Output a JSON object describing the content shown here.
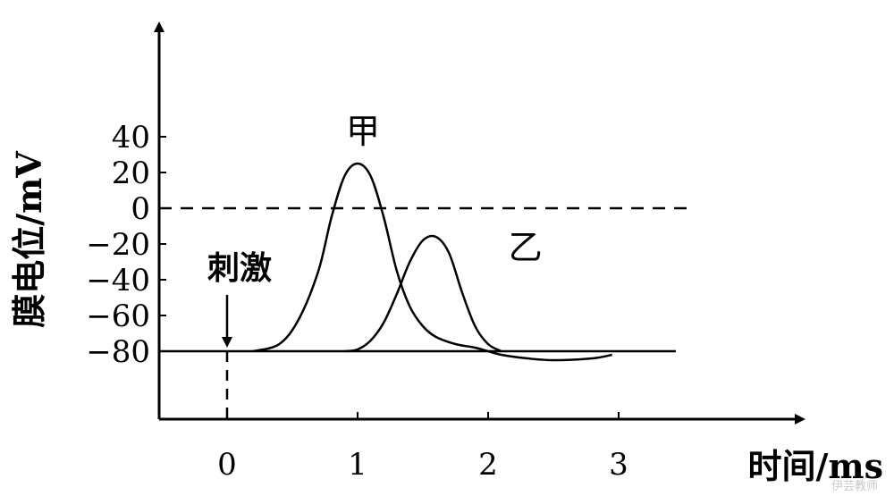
{
  "chart_data": {
    "type": "line",
    "xlabel": "时间/ms",
    "ylabel": "膜电位/mV",
    "xlim": [
      -0.55,
      3.2
    ],
    "ylim": [
      -118,
      78
    ],
    "x_ticks": [
      "0",
      "1",
      "2",
      "3"
    ],
    "y_ticks": [
      "40",
      "20",
      "0",
      "−20",
      "−40",
      "−60",
      "−80"
    ],
    "y_tick_values": [
      40,
      20,
      0,
      -20,
      -40,
      -60,
      -80
    ],
    "reference_line": {
      "y": 0,
      "style": "dashed"
    },
    "stimulus": {
      "label": "刺激",
      "x": 0,
      "style": "arrow with dashed drop line"
    },
    "baseline": {
      "y": -80,
      "x_range": [
        -0.5,
        3.25
      ]
    },
    "series": [
      {
        "name": "甲",
        "x": [
          0.2,
          0.4,
          0.55,
          0.7,
          0.8,
          0.9,
          1.0,
          1.1,
          1.2,
          1.3,
          1.4,
          1.5,
          1.6,
          1.75,
          1.9,
          2.0,
          2.1,
          2.3,
          2.5,
          2.8,
          2.95
        ],
        "y": [
          -80,
          -76,
          -62,
          -35,
          -5,
          18,
          25,
          18,
          -5,
          -35,
          -55,
          -66,
          -72,
          -76,
          -78,
          -80,
          -82,
          -84,
          -85,
          -84,
          -82
        ]
      },
      {
        "name": "乙",
        "x": [
          0.9,
          1.0,
          1.1,
          1.2,
          1.3,
          1.4,
          1.5,
          1.6,
          1.7,
          1.8,
          1.9,
          2.0,
          2.1
        ],
        "y": [
          -80,
          -79,
          -74,
          -64,
          -48,
          -30,
          -18,
          -16,
          -25,
          -47,
          -66,
          -76,
          -80
        ]
      }
    ],
    "grid": false,
    "legend": "none (series labeled directly on curves)"
  },
  "watermark": "伊芸教师"
}
